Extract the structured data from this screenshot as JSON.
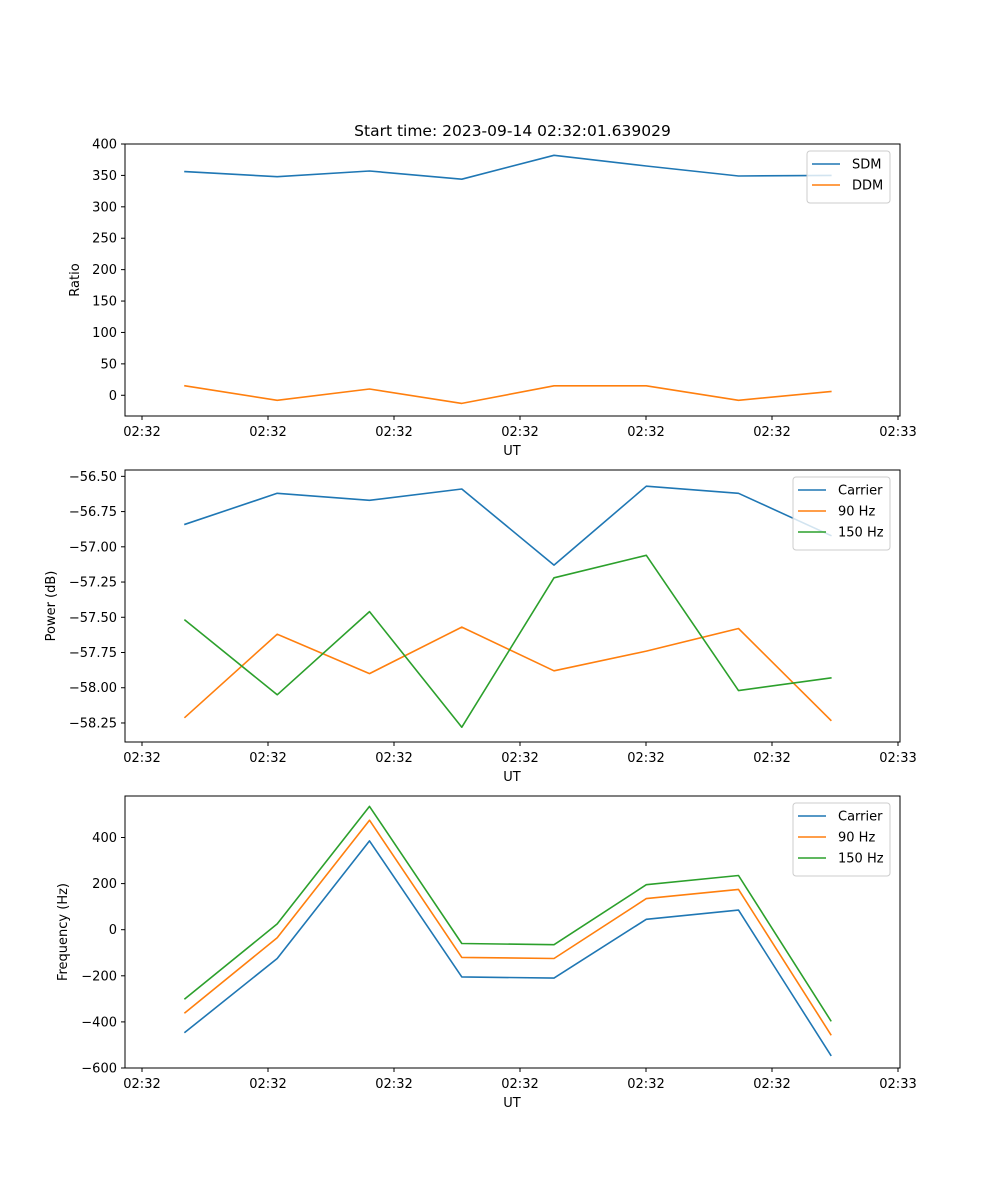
{
  "title": "Start time: 2023-09-14 02:32:01.639029",
  "colors": {
    "blue": "#1f77b4",
    "orange": "#ff7f0e",
    "green": "#2ca02c"
  },
  "chart_data": [
    {
      "type": "line",
      "xlabel": "UT",
      "ylabel": "Ratio",
      "x_tick_labels": [
        "02:32",
        "02:32",
        "02:32",
        "02:32",
        "02:32",
        "02:32",
        "02:32"
      ],
      "x_last_tick_label": "02:33",
      "xlim": [
        -0.15,
        8.25
      ],
      "ylim": [
        -33,
        400
      ],
      "yticks": [
        0,
        50,
        100,
        150,
        200,
        250,
        300,
        350,
        400
      ],
      "ytick_labels": [
        "0",
        "50",
        "100",
        "150",
        "200",
        "250",
        "300",
        "350",
        "400"
      ],
      "x": [
        0.5,
        1.5,
        2.5,
        3.5,
        4.5,
        5.5,
        6.5,
        7.5
      ],
      "legend_position": "top-right",
      "series": [
        {
          "name": "SDM",
          "color": "#1f77b4",
          "values": [
            356,
            348,
            357,
            344,
            382,
            365,
            349,
            350
          ]
        },
        {
          "name": "DDM",
          "color": "#ff7f0e",
          "values": [
            15,
            -8,
            10,
            -13,
            15,
            15,
            -8,
            6
          ]
        }
      ]
    },
    {
      "type": "line",
      "xlabel": "UT",
      "ylabel": "Power (dB)",
      "x_tick_labels": [
        "02:32",
        "02:32",
        "02:32",
        "02:32",
        "02:32",
        "02:32",
        "02:32"
      ],
      "x_last_tick_label": "02:33",
      "xlim": [
        -0.15,
        8.25
      ],
      "ylim": [
        -58.385,
        -56.455
      ],
      "yticks": [
        -58.25,
        -58.0,
        -57.75,
        -57.5,
        -57.25,
        -57.0,
        -56.75,
        -56.5
      ],
      "ytick_labels": [
        "−58.25",
        "−58.00",
        "−57.75",
        "−57.50",
        "−57.25",
        "−57.00",
        "−56.75",
        "−56.50"
      ],
      "x": [
        0.5,
        1.5,
        2.5,
        3.5,
        4.5,
        5.5,
        6.5,
        7.5
      ],
      "legend_position": "top-right",
      "series": [
        {
          "name": "Carrier",
          "color": "#1f77b4",
          "values": [
            -56.84,
            -56.62,
            -56.67,
            -56.59,
            -57.13,
            -56.57,
            -56.62,
            -56.92
          ]
        },
        {
          "name": "90 Hz",
          "color": "#ff7f0e",
          "values": [
            -58.21,
            -57.62,
            -57.9,
            -57.57,
            -57.88,
            -57.74,
            -57.58,
            -58.23
          ]
        },
        {
          "name": "150 Hz",
          "color": "#2ca02c",
          "values": [
            -57.52,
            -58.05,
            -57.46,
            -58.28,
            -57.22,
            -57.06,
            -58.02,
            -57.93
          ]
        }
      ]
    },
    {
      "type": "line",
      "xlabel": "UT",
      "ylabel": "Frequency (Hz)",
      "x_tick_labels": [
        "02:32",
        "02:32",
        "02:32",
        "02:32",
        "02:32",
        "02:32",
        "02:32"
      ],
      "x_last_tick_label": "02:33",
      "xlim": [
        -0.15,
        8.25
      ],
      "ylim": [
        -600,
        580
      ],
      "yticks": [
        -600,
        -400,
        -200,
        0,
        200,
        400
      ],
      "ytick_labels": [
        "−600",
        "−400",
        "−200",
        "0",
        "200",
        "400"
      ],
      "x": [
        0.5,
        1.5,
        2.5,
        3.5,
        4.5,
        5.5,
        6.5,
        7.5
      ],
      "legend_position": "top-right",
      "series": [
        {
          "name": "Carrier",
          "color": "#1f77b4",
          "values": [
            -445,
            -125,
            385,
            -205,
            -210,
            45,
            85,
            -545
          ]
        },
        {
          "name": "90 Hz",
          "color": "#ff7f0e",
          "values": [
            -360,
            -35,
            475,
            -120,
            -125,
            135,
            175,
            -455
          ]
        },
        {
          "name": "150 Hz",
          "color": "#2ca02c",
          "values": [
            -300,
            25,
            535,
            -60,
            -65,
            195,
            235,
            -395
          ]
        }
      ]
    }
  ]
}
